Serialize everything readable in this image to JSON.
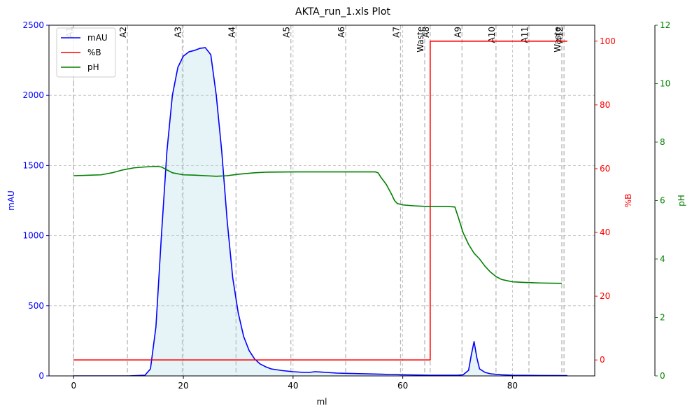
{
  "chart_data": {
    "type": "line",
    "title": "AKTA_run_1.xls Plot",
    "xlabel": "ml",
    "x_ticks": [
      0,
      20,
      40,
      60,
      80
    ],
    "xlim": [
      -4.5,
      95
    ],
    "grid": true,
    "legend_position": "top-left",
    "axes": {
      "left": {
        "label": "mAU",
        "color": "#0000ff",
        "ylim": [
          0,
          2500
        ],
        "ticks": [
          0,
          500,
          1000,
          1500,
          2000,
          2500
        ]
      },
      "right": {
        "label": "%B",
        "color": "#ff0000",
        "ylim": [
          -5,
          105
        ],
        "ticks": [
          0,
          20,
          40,
          60,
          80,
          100
        ]
      },
      "far_right": {
        "label": "pH",
        "color": "#008000",
        "ylim": [
          0,
          12
        ],
        "ticks": [
          0,
          2,
          4,
          6,
          8,
          10,
          12
        ]
      }
    },
    "series": [
      {
        "name": "mAU",
        "axis": "left",
        "color": "#0000ff",
        "fill": "#add8e6",
        "x": [
          0,
          10,
          13,
          14,
          15,
          16,
          17,
          18,
          19,
          20,
          21,
          22,
          23,
          24,
          25,
          26,
          27,
          28,
          29,
          30,
          31,
          32,
          33,
          34,
          35,
          36,
          38,
          40,
          42,
          43,
          44,
          45,
          46,
          48,
          50,
          52,
          54,
          56,
          58,
          60,
          65,
          70,
          71,
          72,
          72.5,
          73,
          73.5,
          74,
          75,
          76,
          78,
          80,
          85,
          90
        ],
        "y": [
          0,
          0,
          5,
          50,
          350,
          1000,
          1600,
          2000,
          2200,
          2280,
          2310,
          2320,
          2335,
          2340,
          2290,
          2000,
          1600,
          1100,
          700,
          450,
          280,
          180,
          120,
          85,
          65,
          50,
          38,
          30,
          25,
          25,
          30,
          28,
          25,
          20,
          18,
          16,
          14,
          12,
          10,
          8,
          5,
          5,
          8,
          40,
          150,
          245,
          130,
          50,
          25,
          15,
          8,
          5,
          3,
          2
        ]
      },
      {
        "name": "%B",
        "axis": "right",
        "color": "#ff0000",
        "x": [
          0,
          65,
          65,
          90
        ],
        "y": [
          0,
          0,
          100,
          100
        ]
      },
      {
        "name": "pH",
        "axis": "far_right",
        "color": "#008000",
        "x": [
          0,
          5,
          7,
          9,
          11,
          13,
          15,
          16,
          17,
          18,
          20,
          22,
          24,
          26,
          28,
          30,
          33,
          35,
          40,
          45,
          50,
          55,
          55.5,
          56,
          57,
          58,
          58.5,
          59,
          60,
          62,
          64,
          66,
          68,
          69.5,
          70,
          71,
          72,
          73,
          74,
          75,
          76,
          77,
          78,
          80,
          82,
          85,
          88,
          89
        ],
        "y": [
          6.85,
          6.88,
          6.95,
          7.05,
          7.12,
          7.15,
          7.17,
          7.15,
          7.05,
          6.95,
          6.88,
          6.87,
          6.85,
          6.83,
          6.85,
          6.9,
          6.95,
          6.97,
          6.98,
          6.98,
          6.98,
          6.98,
          6.95,
          6.8,
          6.55,
          6.2,
          6.0,
          5.9,
          5.85,
          5.82,
          5.8,
          5.8,
          5.8,
          5.78,
          5.5,
          4.9,
          4.5,
          4.2,
          4.0,
          3.75,
          3.55,
          3.4,
          3.3,
          3.22,
          3.2,
          3.18,
          3.17,
          3.17
        ]
      }
    ],
    "fractions": [
      {
        "x": 0,
        "label": "A1"
      },
      {
        "x": 9.8,
        "label": "A2"
      },
      {
        "x": 19.8,
        "label": "A3"
      },
      {
        "x": 29.6,
        "label": "A4"
      },
      {
        "x": 39.6,
        "label": "A5"
      },
      {
        "x": 49.6,
        "label": "A6"
      },
      {
        "x": 59.6,
        "label": "A7"
      },
      {
        "x": 64.0,
        "label": "Waste"
      },
      {
        "x": 65.0,
        "label": "A8"
      },
      {
        "x": 70.8,
        "label": "A9"
      },
      {
        "x": 77.0,
        "label": "A10"
      },
      {
        "x": 83.0,
        "label": "A11"
      },
      {
        "x": 89.0,
        "label": "Waste"
      },
      {
        "x": 89.4,
        "label": "A12"
      }
    ]
  }
}
